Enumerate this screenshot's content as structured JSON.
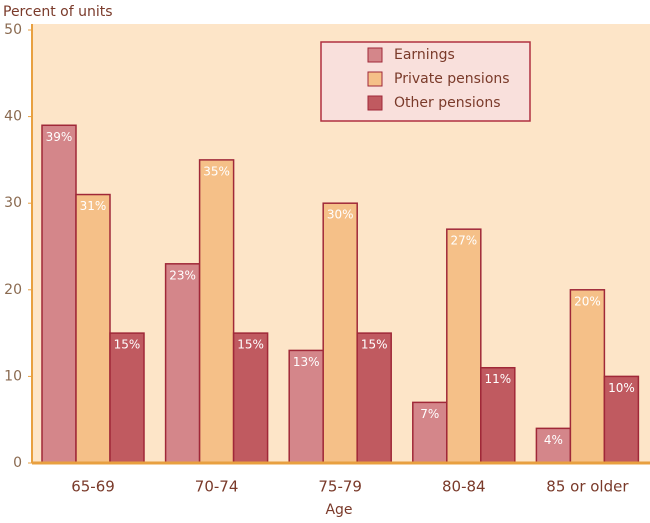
{
  "chart_data": {
    "type": "bar",
    "y_label": "Percent of units",
    "x_label": "Age",
    "categories": [
      "65-69",
      "70-74",
      "75-79",
      "80-84",
      "85 or older"
    ],
    "series": [
      {
        "name": "Earnings",
        "color": "#d4868a",
        "values": [
          39,
          23,
          13,
          7,
          4
        ],
        "value_labels": [
          "39%",
          "23%",
          "13%",
          "7%",
          "4%"
        ]
      },
      {
        "name": "Private pensions",
        "color": "#f5c088",
        "values": [
          31,
          35,
          30,
          27,
          20
        ],
        "value_labels": [
          "31%",
          "35%",
          "30%",
          "27%",
          "20%"
        ]
      },
      {
        "name": "Other pensions",
        "color": "#c05a60",
        "values": [
          15,
          15,
          15,
          11,
          10
        ],
        "value_labels": [
          "15%",
          "15%",
          "15%",
          "11%",
          "10%"
        ]
      }
    ],
    "ylim": [
      0,
      50
    ],
    "yticks": [
      0,
      10,
      20,
      30,
      40,
      50
    ]
  }
}
